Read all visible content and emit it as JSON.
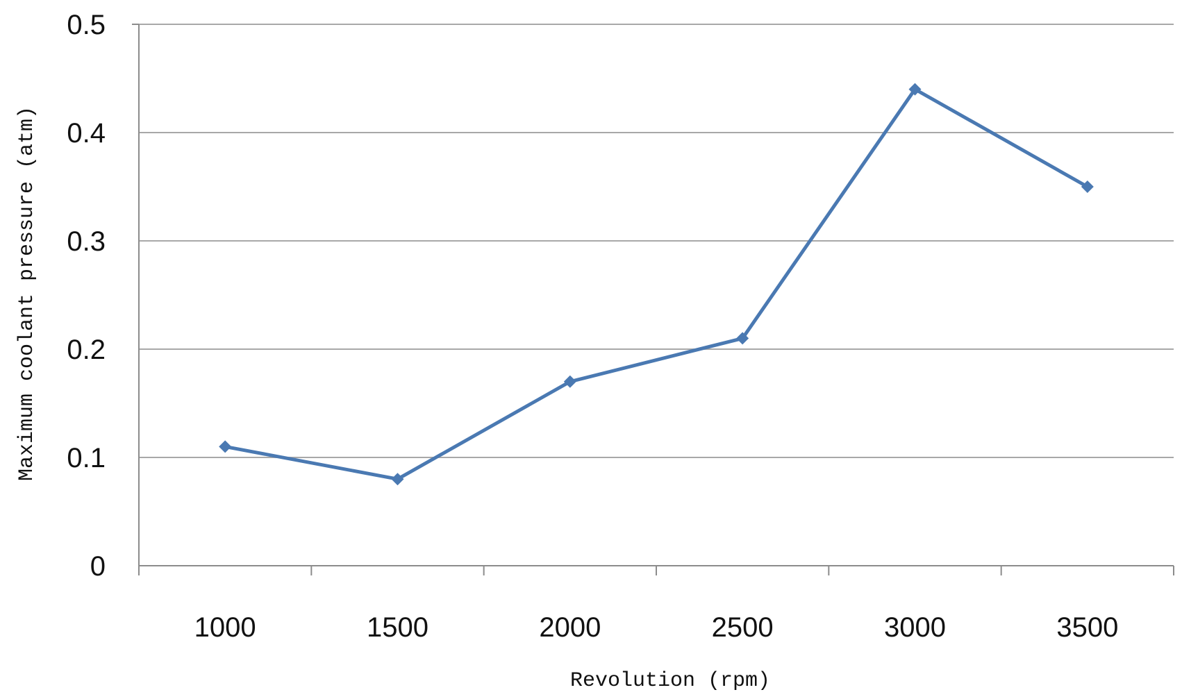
{
  "chart_data": {
    "type": "line",
    "title": "",
    "xlabel": "Revolution (rpm)",
    "ylabel": "Maximum coolant pressure (atm)",
    "categories": [
      "1000",
      "1500",
      "2000",
      "2500",
      "3000",
      "3500"
    ],
    "series": [
      {
        "values": [
          0.11,
          0.08,
          0.17,
          0.21,
          0.44,
          0.35
        ]
      }
    ],
    "ylim": [
      0,
      0.5
    ],
    "yticks": [
      "0",
      "0.1",
      "0.2",
      "0.3",
      "0.4",
      "0.5"
    ],
    "grid": "horizontal",
    "legend": "none",
    "colors": {
      "line": "#4a79b2",
      "grid": "#a8a8a8",
      "axis": "#8c8c8c"
    }
  }
}
